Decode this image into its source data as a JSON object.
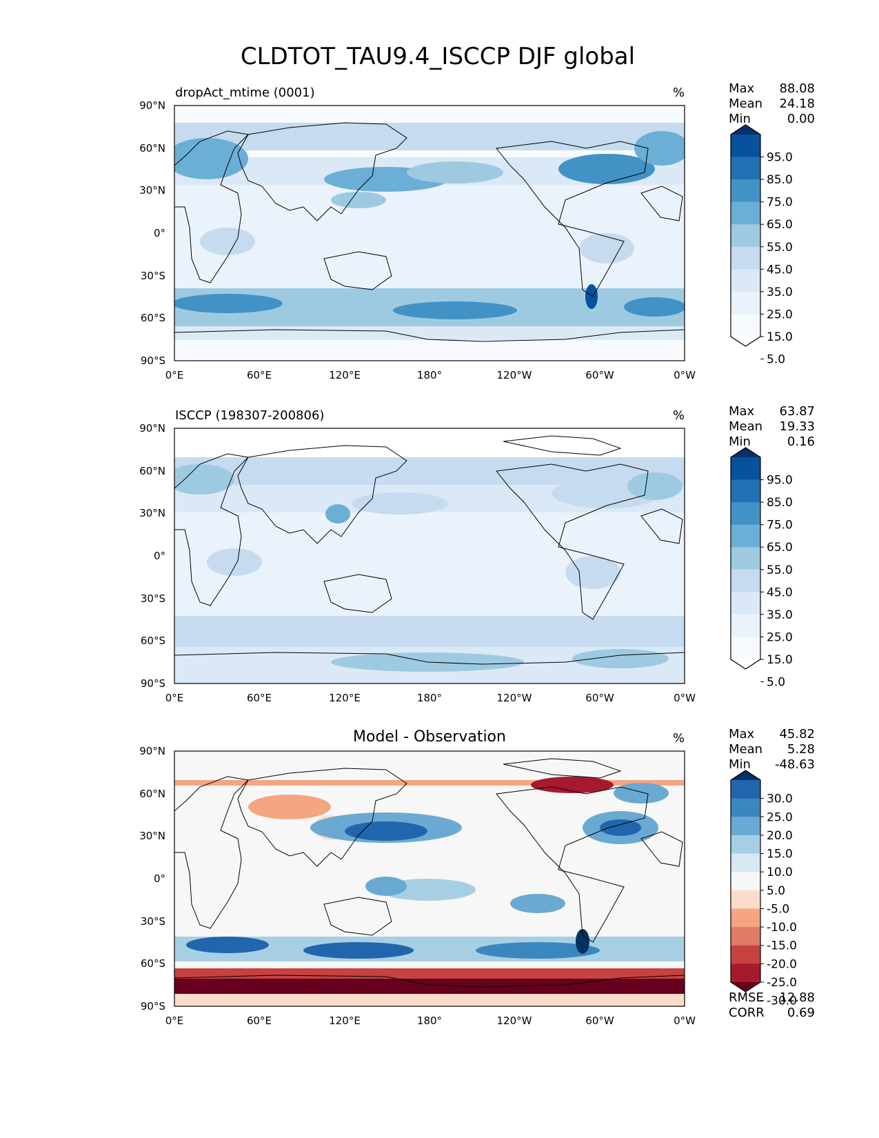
{
  "title": "CLDTOT_TAU9.4_ISCCP DJF global",
  "axes": {
    "lat_ticks": [
      "90°N",
      "60°N",
      "30°N",
      "0°",
      "30°S",
      "60°S",
      "90°S"
    ],
    "lon_ticks": [
      "0°E",
      "60°E",
      "120°E",
      "180°",
      "120°W",
      "60°W",
      "0°W"
    ]
  },
  "panels": [
    {
      "id": "test",
      "left_title": "dropAct_mtime (0001)",
      "center_title": "",
      "units": "%",
      "stats": [
        {
          "label": "Max",
          "value": "88.08"
        },
        {
          "label": "Mean",
          "value": "24.18"
        },
        {
          "label": "Min",
          "value": "0.00"
        }
      ],
      "colorbar": {
        "labels": [
          "95.0",
          "85.0",
          "75.0",
          "65.0",
          "55.0",
          "45.0",
          "35.0",
          "25.0",
          "15.0",
          "5.0"
        ],
        "colors_top_to_bottom": [
          "#08306b",
          "#08519c",
          "#2171b5",
          "#4292c6",
          "#6baed6",
          "#9ecae1",
          "#c6dbef",
          "#dbe9f6",
          "#eaf2fb",
          "#f7fbff",
          "#ffffff"
        ]
      },
      "extra_stats": []
    },
    {
      "id": "reference",
      "left_title": "ISCCP (198307-200806)",
      "center_title": "",
      "units": "%",
      "stats": [
        {
          "label": "Max",
          "value": "63.87"
        },
        {
          "label": "Mean",
          "value": "19.33"
        },
        {
          "label": "Min",
          "value": "0.16"
        }
      ],
      "colorbar": {
        "labels": [
          "95.0",
          "85.0",
          "75.0",
          "65.0",
          "55.0",
          "45.0",
          "35.0",
          "25.0",
          "15.0",
          "5.0"
        ],
        "colors_top_to_bottom": [
          "#08306b",
          "#08519c",
          "#2171b5",
          "#4292c6",
          "#6baed6",
          "#9ecae1",
          "#c6dbef",
          "#dbe9f6",
          "#eaf2fb",
          "#f7fbff",
          "#ffffff"
        ]
      },
      "extra_stats": []
    },
    {
      "id": "difference",
      "left_title": "",
      "center_title": "Model - Observation",
      "units": "%",
      "stats": [
        {
          "label": "Max",
          "value": "45.82"
        },
        {
          "label": "Mean",
          "value": "5.28"
        },
        {
          "label": "Min",
          "value": "-48.63"
        }
      ],
      "colorbar": {
        "labels": [
          "30.0",
          "25.0",
          "20.0",
          "15.0",
          "10.0",
          "5.0",
          "-5.0",
          "-10.0",
          "-15.0",
          "-20.0",
          "-25.0",
          "-30.0"
        ],
        "colors_top_to_bottom": [
          "#053061",
          "#2166ac",
          "#3a87c0",
          "#6aaad2",
          "#a7cfe4",
          "#d6e8f2",
          "#f7f7f7",
          "#fbdccb",
          "#f4a582",
          "#e07b63",
          "#c6413f",
          "#a7192c",
          "#67001f"
        ]
      },
      "extra_stats": [
        {
          "label": "RMSE",
          "value": "12.88"
        },
        {
          "label": "CORR",
          "value": "0.69"
        }
      ]
    }
  ]
}
